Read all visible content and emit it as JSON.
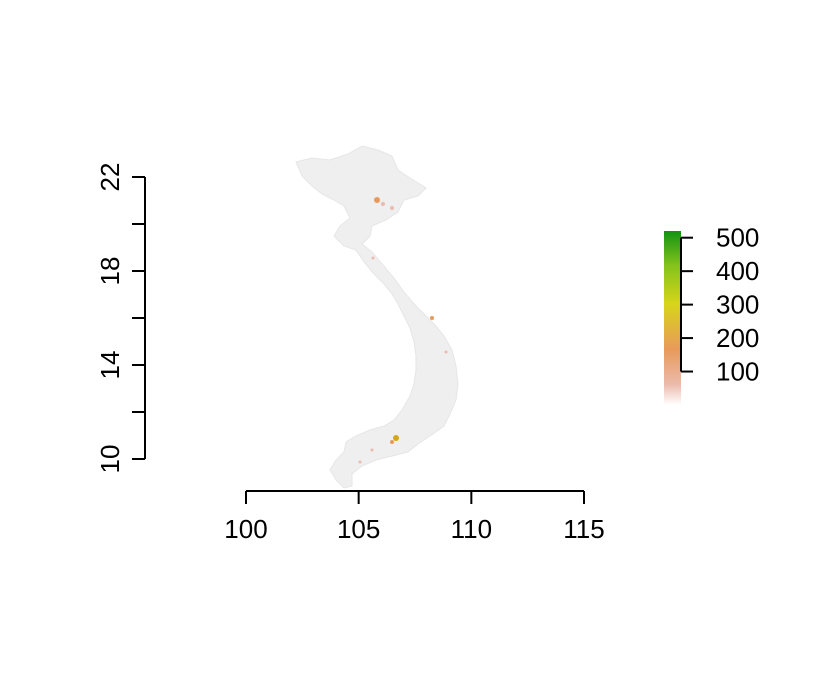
{
  "map": {
    "x_axis": {
      "ticks": [
        100,
        105,
        110,
        115
      ],
      "tick_labels": [
        "100",
        "105",
        "110",
        "115"
      ],
      "range": [
        100,
        115
      ]
    },
    "y_axis": {
      "ticks": [
        10,
        12,
        14,
        16,
        18,
        20,
        22
      ],
      "tick_labels": [
        "10",
        "",
        "14",
        "",
        "18",
        "",
        "22"
      ],
      "range": [
        10,
        22
      ]
    },
    "legend": {
      "ticks": [
        100,
        200,
        300,
        400,
        500
      ],
      "tick_labels": [
        "100",
        "200",
        "300",
        "400",
        "500"
      ],
      "range": [
        0,
        520
      ],
      "colors": [
        "#ffffff",
        "#ebbaaa",
        "#e89a5a",
        "#d7d51a",
        "#84c31b",
        "#129312"
      ]
    },
    "land_color": "#efefef"
  }
}
